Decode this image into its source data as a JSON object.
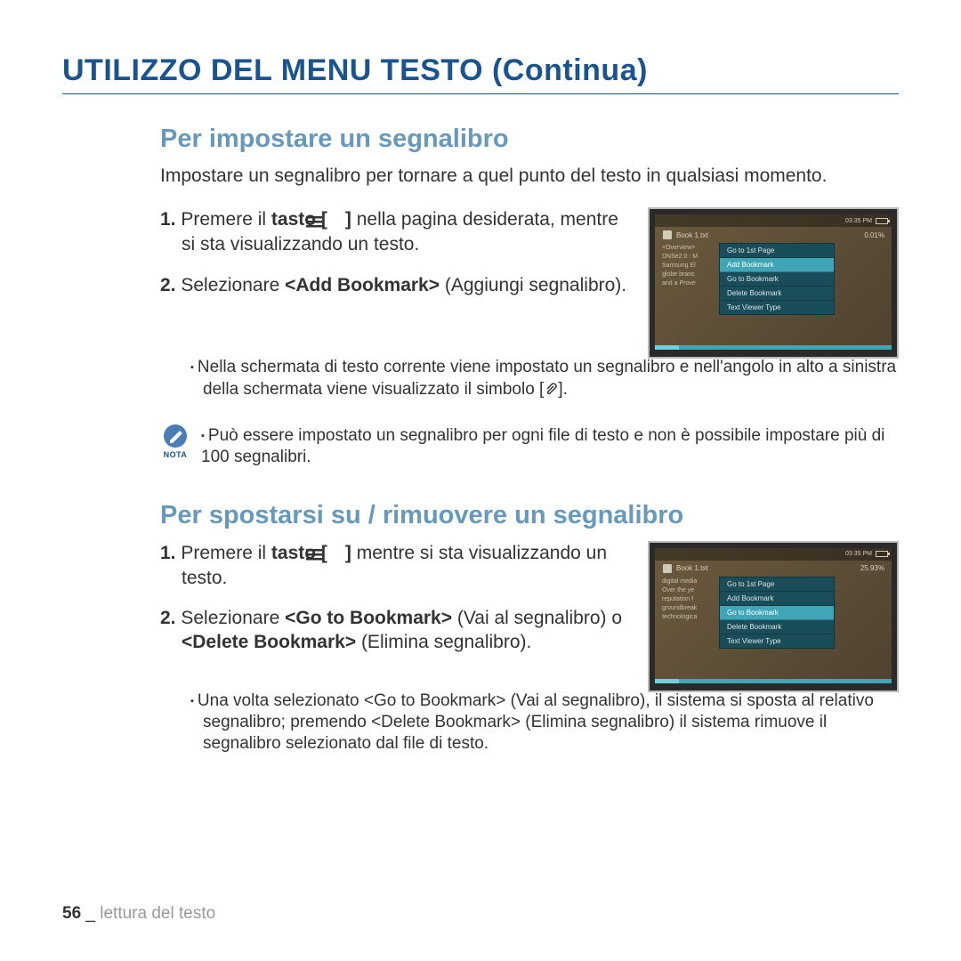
{
  "title": "UTILIZZO DEL MENU TESTO (Continua)",
  "section1": {
    "heading": "Per impostare un segnalibro",
    "intro": "Impostare un segnalibro per tornare a quel punto del testo in qualsiasi momento.",
    "step1_a": "Premere il ",
    "step1_b": "tasto [",
    "step1_c": "] ",
    "step1_d": "nella pagina desiderata, mentre si sta visualizzando un testo.",
    "step2_a": "Selezionare ",
    "step2_b": "<Add Bookmark>",
    "step2_c": " (Aggiungi segnalibro).",
    "bullet_a": "Nella schermata di testo corrente viene impostato un segnalibro e nell'angolo in alto a sinistra della schermata viene visualizzato il simbolo [",
    "bullet_b": "].",
    "note": "Può essere impostato un segnalibro per ogni file di testo e non è possibile impostare più di 100 segnalibri.",
    "note_label": "NOTA"
  },
  "section2": {
    "heading": "Per spostarsi su / rimuovere un segnalibro",
    "step1_a": "Premere il ",
    "step1_b": "tasto [",
    "step1_c": "] ",
    "step1_d": "mentre si sta visualizzando un testo.",
    "step2_a": "Selezionare ",
    "step2_b": "<Go to Bookmark>",
    "step2_c": " (Vai al segnalibro) o ",
    "step2_d": "<Delete Bookmark>",
    "step2_e": " (Elimina segnalibro).",
    "bullet": "Una volta selezionato <Go to Bookmark> (Vai al segnalibro), il sistema si sposta al relativo segnalibro; premendo <Delete Bookmark> (Elimina segnalibro) il sistema rimuove il segnalibro selezionato dal file di testo."
  },
  "device": {
    "time1": "03:35 PM",
    "time2": "03:35 PM",
    "book": "Book 1.txt",
    "pct1": "0.01%",
    "pct2": "25.93%",
    "bg_lines1": [
      "<Overview>",
      "DNSe2.0 : M",
      "Samsung El",
      "globe branc",
      "and a Prove"
    ],
    "bg_lines2": [
      "digital media",
      "Over the ye",
      "reputation f",
      "groundbreak",
      "technologica"
    ],
    "menu": [
      "Go to 1st Page",
      "Add Bookmark",
      "Go to Bookmark",
      "Delete Bookmark",
      "Text Viewer Type"
    ],
    "hl1": 1,
    "hl2": 2
  },
  "footer": {
    "page": "56",
    "sep": " _ ",
    "section": "lettura del testo"
  },
  "colors": {
    "title": "#1a5490",
    "subtitle": "#6699bb",
    "menu_bg": "#1a4d5a",
    "menu_hl": "#3fa6b8",
    "device_bg": "#6b5a3e"
  }
}
